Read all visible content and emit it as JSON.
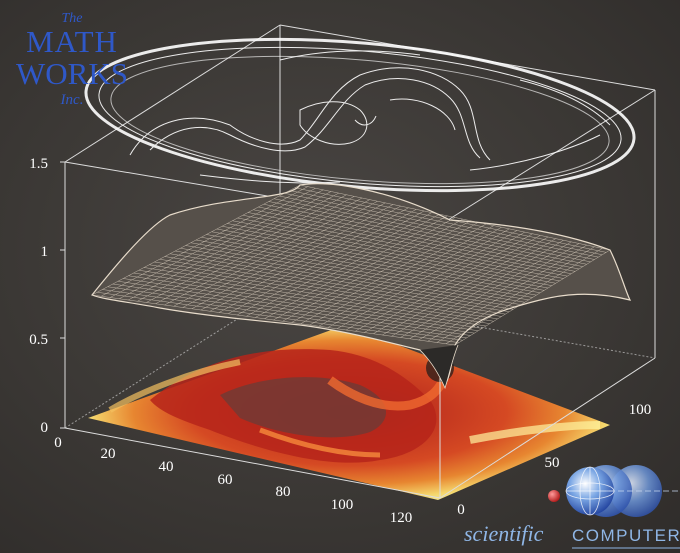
{
  "chart_data": {
    "type": "surface3d",
    "title": "",
    "layers": [
      "contour",
      "mesh",
      "heatmap"
    ],
    "axes": {
      "z": {
        "ticks": [
          "0",
          "0.5",
          "1",
          "1.5"
        ],
        "range": [
          0,
          1.5
        ]
      },
      "x": {
        "ticks": [
          "0",
          "20",
          "40",
          "60",
          "80",
          "100",
          "120"
        ],
        "range": [
          0,
          128
        ]
      },
      "y": {
        "ticks": [
          "0",
          "50",
          "100"
        ],
        "range": [
          0,
          128
        ]
      }
    },
    "grid": false,
    "colors": {
      "heat_low": "#c02818",
      "heat_mid": "#e05a20",
      "heat_high": "#fff27a",
      "mesh": "#e8dccb",
      "contour": "#ffffff",
      "box": "#d8d8d8"
    }
  },
  "logo": {
    "line1": "The",
    "line2": "MATH",
    "line3": "WORKS",
    "line4": "Inc."
  },
  "brand": {
    "name_italic": "scientific",
    "name_caps": "COMPUTERS"
  }
}
